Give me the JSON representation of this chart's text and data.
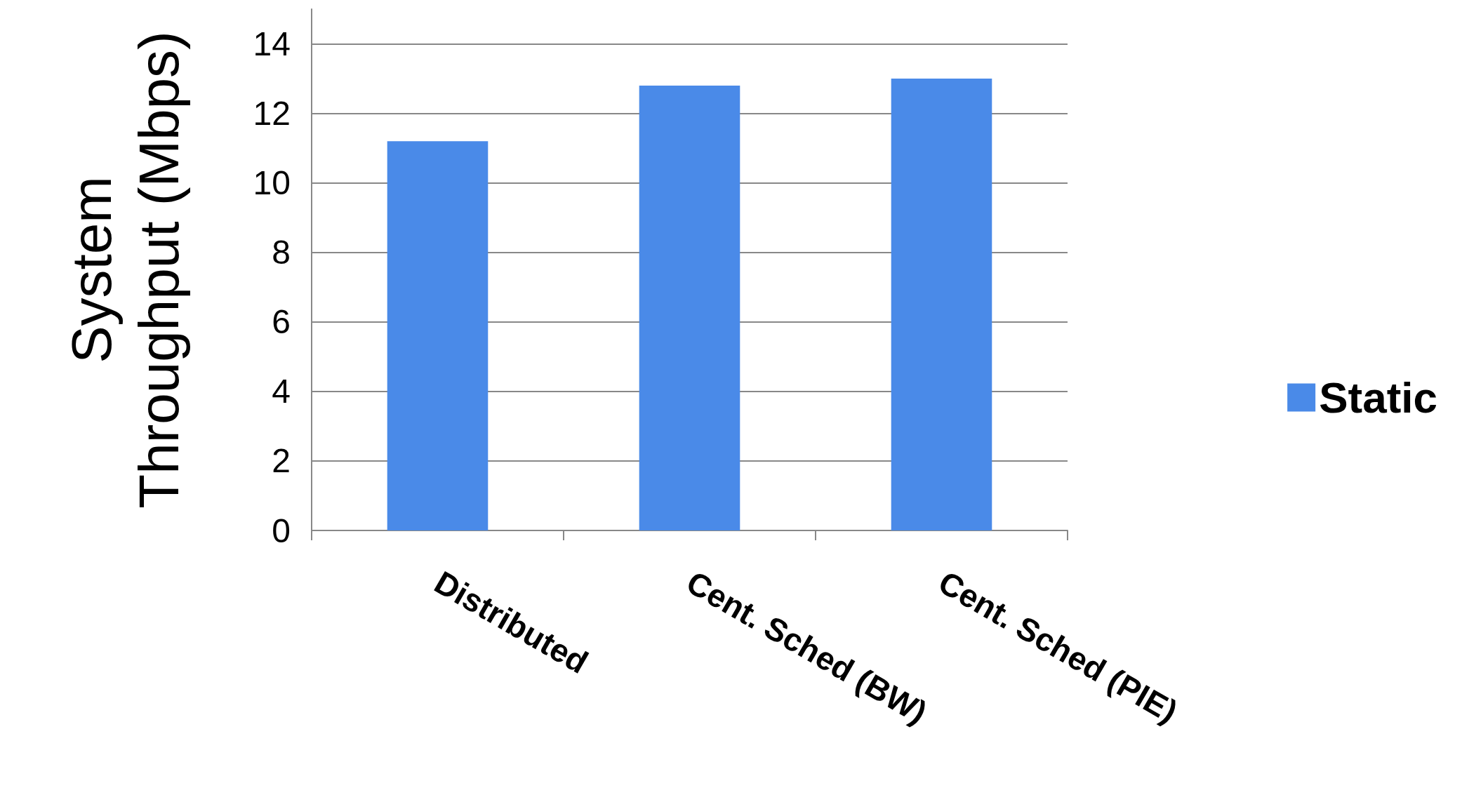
{
  "chart_data": {
    "type": "bar",
    "ylabel": "System\nThroughput (Mbps)",
    "categories": [
      "Distributed",
      "Cent. Sched (BW)",
      "Cent. Sched (PIE)"
    ],
    "series": [
      {
        "name": "Static",
        "color": "#4a8ae8",
        "values": [
          11.2,
          12.8,
          13.0
        ]
      }
    ],
    "ylim": [
      0,
      15
    ],
    "yticks": [
      0,
      2,
      4,
      6,
      8,
      10,
      12,
      14
    ],
    "grid": "y",
    "legend": "right"
  }
}
